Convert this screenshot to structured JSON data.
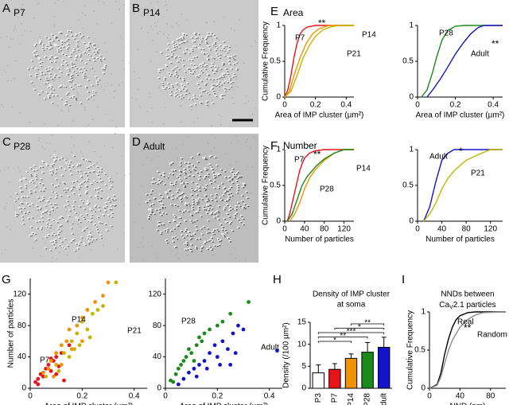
{
  "images": [
    {
      "letter": "A",
      "label": "P7"
    },
    {
      "letter": "B",
      "label": "P14"
    },
    {
      "letter": "C",
      "label": "P28"
    },
    {
      "letter": "D",
      "label": "Adult"
    }
  ],
  "chart_data": [
    {
      "type": "line",
      "panel": "E",
      "heading": "Area",
      "ylabel": "Cumulative Frequency",
      "xlabel": "Area of IMP cluster (µm²)",
      "xlim": [
        0,
        0.45
      ],
      "xticks": [
        0,
        0.2,
        0.4
      ],
      "ylim": [
        0,
        1
      ],
      "yticks": [
        0,
        0.5,
        1
      ],
      "series": [
        {
          "name": "P7",
          "color": "#e8141b",
          "x": [
            0,
            0.02,
            0.04,
            0.06,
            0.08,
            0.1,
            0.12,
            0.15,
            0.2,
            0.45
          ],
          "values": [
            0,
            0.1,
            0.3,
            0.55,
            0.75,
            0.88,
            0.94,
            0.98,
            1,
            1
          ]
        },
        {
          "name": "P14",
          "color": "#f39200",
          "x": [
            0,
            0.03,
            0.06,
            0.1,
            0.14,
            0.18,
            0.22,
            0.27,
            0.3,
            0.45
          ],
          "values": [
            0,
            0.08,
            0.3,
            0.55,
            0.75,
            0.88,
            0.95,
            0.99,
            1,
            1
          ]
        },
        {
          "name": "P21",
          "color": "#c8b400",
          "x": [
            0,
            0.04,
            0.08,
            0.12,
            0.16,
            0.2,
            0.25,
            0.3,
            0.35,
            0.45
          ],
          "values": [
            0,
            0.08,
            0.3,
            0.55,
            0.72,
            0.85,
            0.94,
            0.98,
            1,
            1
          ]
        }
      ],
      "annotations": [
        {
          "text": "**",
          "color": "#e8141b"
        }
      ]
    },
    {
      "type": "line",
      "xlabel": "Area of IMP cluster (µm²)",
      "xlim": [
        0,
        0.45
      ],
      "xticks": [
        0,
        0.2,
        0.4
      ],
      "ylim": [
        0,
        1
      ],
      "yticks": [
        0,
        0.5,
        1
      ],
      "series": [
        {
          "name": "P28",
          "color": "#1a8a1a",
          "x": [
            0.02,
            0.05,
            0.08,
            0.1,
            0.13,
            0.16,
            0.2,
            0.25,
            0.45
          ],
          "values": [
            0,
            0.1,
            0.35,
            0.55,
            0.8,
            0.93,
            0.99,
            1,
            1
          ]
        },
        {
          "name": "Adult",
          "color": "#1414c8",
          "x": [
            0.05,
            0.08,
            0.12,
            0.16,
            0.2,
            0.24,
            0.28,
            0.32,
            0.35,
            0.45
          ],
          "values": [
            0,
            0.1,
            0.25,
            0.42,
            0.6,
            0.75,
            0.88,
            0.97,
            1,
            1
          ]
        }
      ],
      "annotations": [
        {
          "text": "**",
          "color": "#1414c8"
        }
      ]
    },
    {
      "type": "line",
      "panel": "F",
      "heading": "Number",
      "ylabel": "Cumulative Frequency",
      "xlabel": "Number of particles",
      "xlim": [
        0,
        140
      ],
      "xticks": [
        0,
        40,
        80,
        120
      ],
      "ylim": [
        0,
        1
      ],
      "yticks": [
        0,
        0.5,
        1
      ],
      "series": [
        {
          "name": "P7",
          "color": "#e8141b",
          "x": [
            5,
            10,
            15,
            20,
            25,
            30,
            35,
            40,
            50,
            60,
            80,
            140
          ],
          "values": [
            0,
            0.1,
            0.25,
            0.4,
            0.55,
            0.7,
            0.8,
            0.88,
            0.95,
            0.98,
            1,
            1
          ]
        },
        {
          "name": "P14",
          "color": "#f39200",
          "x": [
            10,
            20,
            30,
            40,
            50,
            60,
            70,
            80,
            100,
            120,
            140
          ],
          "values": [
            0,
            0.1,
            0.25,
            0.45,
            0.6,
            0.7,
            0.78,
            0.85,
            0.95,
            1,
            1
          ]
        },
        {
          "name": "P28",
          "color": "#1a8a1a",
          "x": [
            5,
            15,
            25,
            35,
            45,
            55,
            65,
            80,
            100,
            120,
            140
          ],
          "values": [
            0,
            0.1,
            0.3,
            0.5,
            0.62,
            0.7,
            0.78,
            0.87,
            0.95,
            1,
            1
          ]
        }
      ],
      "annotations": [
        {
          "text": "**",
          "color": "#e8141b"
        }
      ]
    },
    {
      "type": "line",
      "xlabel": "Number of particles",
      "xlim": [
        0,
        140
      ],
      "xticks": [
        0,
        40,
        80,
        120
      ],
      "ylim": [
        0,
        1
      ],
      "yticks": [
        0,
        0.5,
        1
      ],
      "series": [
        {
          "name": "Adult",
          "color": "#1414c8",
          "x": [
            10,
            20,
            30,
            40,
            50,
            60,
            140
          ],
          "values": [
            0,
            0.2,
            0.55,
            0.85,
            0.95,
            1,
            1
          ]
        },
        {
          "name": "P21",
          "color": "#c8b400",
          "x": [
            10,
            20,
            30,
            40,
            50,
            60,
            70,
            80,
            100,
            120,
            140
          ],
          "values": [
            0,
            0.1,
            0.25,
            0.45,
            0.6,
            0.7,
            0.78,
            0.85,
            0.93,
            1,
            1
          ]
        }
      ],
      "annotations": [
        {
          "text": "*",
          "color": "#1414c8"
        }
      ]
    },
    {
      "type": "scatter",
      "panel": "G",
      "ylabel": "Number of particles",
      "xlabel": "Area of IMP cluster (µm²)",
      "xlim": [
        0,
        0.45
      ],
      "xticks": [
        0,
        0.2,
        0.4
      ],
      "ylim": [
        0,
        140
      ],
      "yticks": [
        0,
        40,
        80,
        120
      ],
      "series": [
        {
          "name": "P7",
          "color": "#e8141b",
          "x": [
            0.02,
            0.03,
            0.04,
            0.05,
            0.06,
            0.07,
            0.08,
            0.09,
            0.1,
            0.11,
            0.12,
            0.05,
            0.03,
            0.08,
            0.15,
            0.13,
            0.1
          ],
          "values": [
            8,
            12,
            18,
            15,
            25,
            30,
            22,
            35,
            40,
            28,
            45,
            20,
            5,
            38,
            55,
            10,
            18
          ]
        },
        {
          "name": "P14",
          "color": "#f39200",
          "x": [
            0.05,
            0.08,
            0.1,
            0.12,
            0.14,
            0.15,
            0.18,
            0.2,
            0.22,
            0.25,
            0.28,
            0.3,
            0.12,
            0.16,
            0.07,
            0.09,
            0.2
          ],
          "values": [
            20,
            35,
            45,
            55,
            60,
            75,
            80,
            90,
            100,
            110,
            118,
            135,
            30,
            50,
            25,
            15,
            60
          ]
        },
        {
          "name": "P21",
          "color": "#c8b400",
          "x": [
            0.06,
            0.1,
            0.13,
            0.16,
            0.18,
            0.2,
            0.22,
            0.24,
            0.26,
            0.28,
            0.33,
            0.15,
            0.19,
            0.23,
            0.11,
            0.17
          ],
          "values": [
            15,
            30,
            45,
            60,
            70,
            85,
            75,
            95,
            100,
            105,
            135,
            40,
            55,
            65,
            22,
            50
          ]
        }
      ]
    },
    {
      "type": "scatter",
      "xlabel": "Area of IMP cluster (µm²)",
      "xlim": [
        0,
        0.45
      ],
      "xticks": [
        0,
        0.2,
        0.4
      ],
      "ylim": [
        0,
        140
      ],
      "yticks": [
        0,
        40,
        80,
        120
      ],
      "series": [
        {
          "name": "P28",
          "color": "#1a8a1a",
          "x": [
            0.02,
            0.04,
            0.05,
            0.06,
            0.07,
            0.08,
            0.1,
            0.12,
            0.13,
            0.15,
            0.17,
            0.2,
            0.22,
            0.25,
            0.32,
            0.09,
            0.11,
            0.14,
            0.03
          ],
          "values": [
            10,
            18,
            25,
            30,
            35,
            40,
            45,
            55,
            65,
            70,
            75,
            80,
            85,
            95,
            110,
            50,
            35,
            60,
            8
          ]
        },
        {
          "name": "Adult",
          "color": "#1414c8",
          "x": [
            0.05,
            0.07,
            0.09,
            0.11,
            0.13,
            0.15,
            0.17,
            0.19,
            0.2,
            0.22,
            0.24,
            0.26,
            0.28,
            0.3,
            0.12,
            0.16,
            0.21,
            0.25,
            0.27,
            0.43
          ],
          "values": [
            5,
            12,
            20,
            25,
            30,
            35,
            45,
            55,
            40,
            60,
            50,
            70,
            80,
            75,
            15,
            25,
            30,
            30,
            45,
            48
          ]
        }
      ]
    },
    {
      "type": "bar",
      "panel": "H",
      "title_lines": [
        "Density of IMP cluster",
        "at soma"
      ],
      "ylabel": "Density (/100 µm²)",
      "categories": [
        "P3",
        "P7",
        "P14",
        "P28",
        "Adult"
      ],
      "values": [
        3.5,
        4.3,
        6.8,
        8.2,
        9.3
      ],
      "errors": [
        1.8,
        1.3,
        1.0,
        2.2,
        2.3
      ],
      "colors": [
        "#ffffff",
        "#e8141b",
        "#f39200",
        "#1a8a1a",
        "#1414c8"
      ],
      "ylim": [
        0,
        15
      ],
      "yticks": [
        0,
        5,
        10,
        15
      ],
      "brackets": [
        {
          "from": "P3",
          "to": "P14",
          "label": "*"
        },
        {
          "from": "P3",
          "to": "P28",
          "label": "**"
        },
        {
          "from": "P3",
          "to": "Adult",
          "label": "***"
        },
        {
          "from": "P7",
          "to": "Adult",
          "label": "*"
        },
        {
          "from": "P14",
          "to": "Adult",
          "label": "**"
        }
      ]
    },
    {
      "type": "line",
      "panel": "I",
      "title_lines": [
        "NNDs between"
      ],
      "title_parts": [
        "Ca",
        "V",
        "2.1 particles"
      ],
      "ylabel": "Cumulative Frequency",
      "xlabel": "NND (nm)",
      "xlim": [
        0,
        100
      ],
      "xticks": [
        0,
        40,
        80
      ],
      "ylim": [
        0,
        1
      ],
      "yticks": [
        0,
        0.5,
        1
      ],
      "series": [
        {
          "name": "Real",
          "color": "#000000",
          "x": [
            0,
            10,
            15,
            20,
            25,
            30,
            35,
            40,
            50,
            60,
            100
          ],
          "values": [
            0,
            0.05,
            0.2,
            0.45,
            0.65,
            0.8,
            0.9,
            0.95,
            0.99,
            1,
            1
          ]
        },
        {
          "name": "Random",
          "color": "#8c8c8c",
          "x": [
            0,
            10,
            15,
            20,
            25,
            30,
            40,
            50,
            60,
            70,
            100
          ],
          "values": [
            0,
            0.04,
            0.15,
            0.33,
            0.5,
            0.63,
            0.8,
            0.9,
            0.96,
            0.99,
            1
          ]
        }
      ],
      "annotations": [
        {
          "text": "**",
          "color": "#000000"
        }
      ]
    }
  ]
}
